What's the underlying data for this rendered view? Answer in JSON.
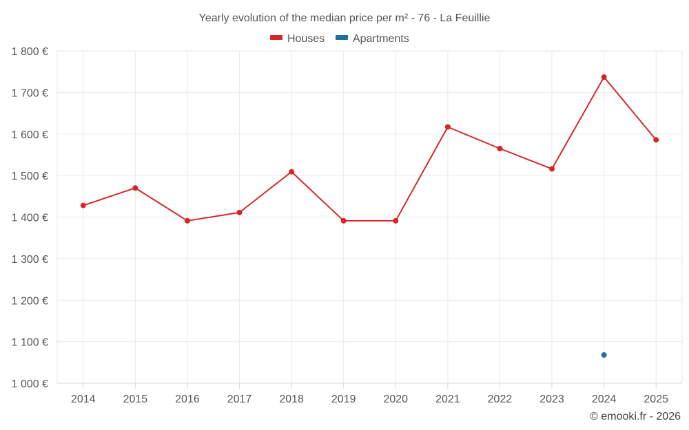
{
  "chart_data": {
    "type": "line",
    "title": "Yearly evolution of the median price per m² - 76 - La Feuillie",
    "categories": [
      "2014",
      "2015",
      "2016",
      "2017",
      "2018",
      "2019",
      "2020",
      "2021",
      "2022",
      "2023",
      "2024",
      "2025"
    ],
    "series": [
      {
        "name": "Houses",
        "color": "#d62728",
        "values": [
          1428,
          1470,
          1391,
          1411,
          1509,
          1391,
          1391,
          1617,
          1565,
          1516,
          1737,
          1586
        ]
      },
      {
        "name": "Apartments",
        "color": "#1f6fa3",
        "values": [
          null,
          null,
          null,
          null,
          null,
          null,
          null,
          null,
          null,
          null,
          1068,
          null
        ]
      }
    ],
    "ylim": [
      1000,
      1800
    ],
    "yticks": [
      1000,
      1100,
      1200,
      1300,
      1400,
      1500,
      1600,
      1700,
      1800
    ],
    "ytick_labels": [
      "1 000 €",
      "1 100 €",
      "1 200 €",
      "1 300 €",
      "1 400 €",
      "1 500 €",
      "1 600 €",
      "1 700 €",
      "1 800 €"
    ],
    "grid": true,
    "legend": "top-center"
  },
  "credit": "© emooki.fr - 2026"
}
